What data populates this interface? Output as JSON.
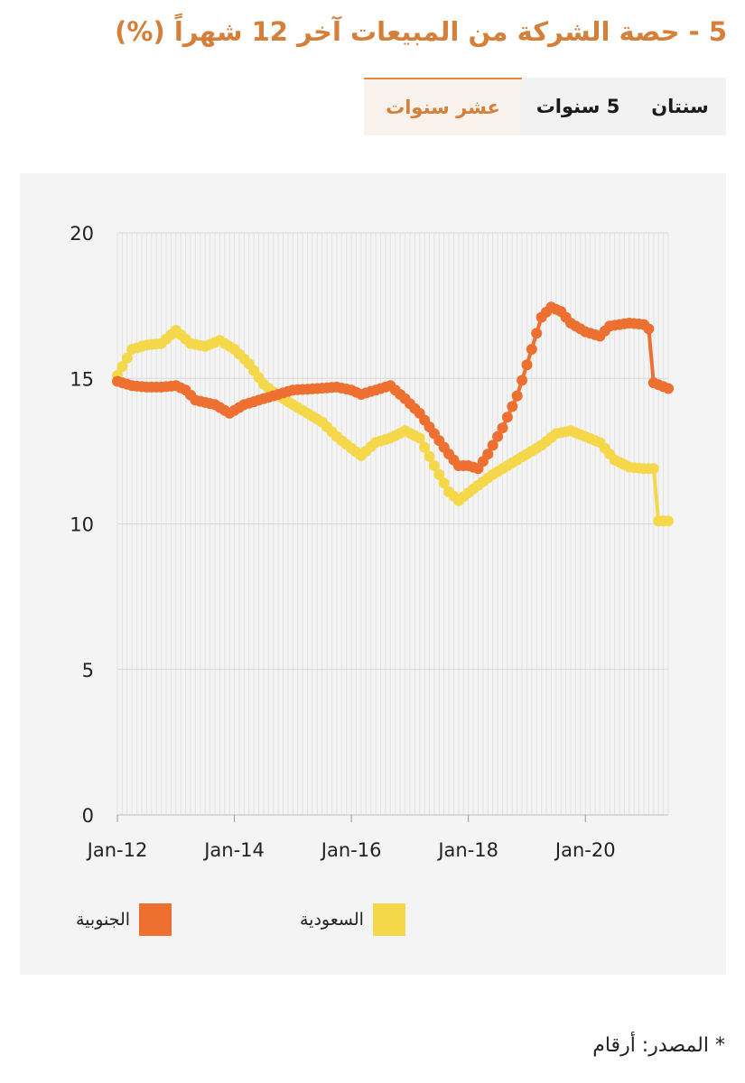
{
  "title": "5 - حصة الشركة من المبيعات آخر 12 شهراً (%)",
  "tabs": [
    {
      "label": "سنتان",
      "active": false
    },
    {
      "label": "5 سنوات",
      "active": false
    },
    {
      "label": "عشر سنوات",
      "active": true
    }
  ],
  "source": "* المصدر: أرقام",
  "colors": {
    "south": "#ee7031",
    "saudi": "#f5d84a",
    "title": "#d4803a"
  },
  "chart_data": {
    "type": "line",
    "title": "",
    "xlabel": "",
    "ylabel": "",
    "ylim": [
      0,
      20
    ],
    "yticks": [
      0,
      5,
      10,
      15,
      20
    ],
    "xticks": [
      "Jan-12",
      "Jan-14",
      "Jan-16",
      "Jan-18",
      "Jan-20"
    ],
    "grid": true,
    "legend_position": "bottom",
    "series": [
      {
        "name": "الجنوبية",
        "color": "#ee7031",
        "points": [
          [
            "2012-01",
            14.9
          ],
          [
            "2012-04",
            14.75
          ],
          [
            "2012-07",
            14.7
          ],
          [
            "2012-10",
            14.7
          ],
          [
            "2013-01",
            14.75
          ],
          [
            "2013-03",
            14.6
          ],
          [
            "2013-05",
            14.25
          ],
          [
            "2013-09",
            14.1
          ],
          [
            "2013-12",
            13.8
          ],
          [
            "2014-03",
            14.1
          ],
          [
            "2014-06",
            14.25
          ],
          [
            "2014-09",
            14.4
          ],
          [
            "2015-01",
            14.6
          ],
          [
            "2015-06",
            14.65
          ],
          [
            "2015-10",
            14.7
          ],
          [
            "2016-01",
            14.6
          ],
          [
            "2016-03",
            14.45
          ],
          [
            "2016-06",
            14.6
          ],
          [
            "2016-09",
            14.75
          ],
          [
            "2016-12",
            14.3
          ],
          [
            "2017-03",
            13.8
          ],
          [
            "2017-06",
            13.1
          ],
          [
            "2017-09",
            12.4
          ],
          [
            "2017-11",
            12.0
          ],
          [
            "2018-01",
            12.0
          ],
          [
            "2018-03",
            11.9
          ],
          [
            "2018-05",
            12.4
          ],
          [
            "2018-08",
            13.3
          ],
          [
            "2018-11",
            14.4
          ],
          [
            "2019-02",
            16.0
          ],
          [
            "2019-04",
            17.1
          ],
          [
            "2019-06",
            17.45
          ],
          [
            "2019-08",
            17.3
          ],
          [
            "2019-10",
            16.9
          ],
          [
            "2020-01",
            16.6
          ],
          [
            "2020-04",
            16.45
          ],
          [
            "2020-06",
            16.8
          ],
          [
            "2020-10",
            16.9
          ],
          [
            "2021-01",
            16.85
          ],
          [
            "2021-02",
            16.7
          ],
          [
            "2021-03",
            14.85
          ],
          [
            "2021-06",
            14.65
          ]
        ]
      },
      {
        "name": "السعودية",
        "color": "#f5d84a",
        "points": [
          [
            "2012-01",
            15.1
          ],
          [
            "2012-04",
            16.0
          ],
          [
            "2012-07",
            16.15
          ],
          [
            "2012-10",
            16.2
          ],
          [
            "2013-01",
            16.65
          ],
          [
            "2013-04",
            16.2
          ],
          [
            "2013-07",
            16.1
          ],
          [
            "2013-10",
            16.3
          ],
          [
            "2014-01",
            16.0
          ],
          [
            "2014-04",
            15.5
          ],
          [
            "2014-07",
            14.8
          ],
          [
            "2014-10",
            14.4
          ],
          [
            "2015-01",
            14.1
          ],
          [
            "2015-04",
            13.8
          ],
          [
            "2015-07",
            13.5
          ],
          [
            "2015-10",
            13.0
          ],
          [
            "2016-01",
            12.6
          ],
          [
            "2016-03",
            12.35
          ],
          [
            "2016-06",
            12.8
          ],
          [
            "2016-09",
            12.95
          ],
          [
            "2016-12",
            13.2
          ],
          [
            "2017-03",
            12.95
          ],
          [
            "2017-06",
            12.0
          ],
          [
            "2017-09",
            11.1
          ],
          [
            "2017-11",
            10.8
          ],
          [
            "2018-02",
            11.2
          ],
          [
            "2018-06",
            11.7
          ],
          [
            "2018-10",
            12.1
          ],
          [
            "2019-01",
            12.4
          ],
          [
            "2019-04",
            12.7
          ],
          [
            "2019-07",
            13.1
          ],
          [
            "2019-10",
            13.2
          ],
          [
            "2020-01",
            13.0
          ],
          [
            "2020-04",
            12.8
          ],
          [
            "2020-07",
            12.2
          ],
          [
            "2020-10",
            11.95
          ],
          [
            "2021-01",
            11.9
          ],
          [
            "2021-03",
            11.9
          ],
          [
            "2021-04",
            10.1
          ],
          [
            "2021-06",
            10.1
          ]
        ]
      }
    ]
  }
}
